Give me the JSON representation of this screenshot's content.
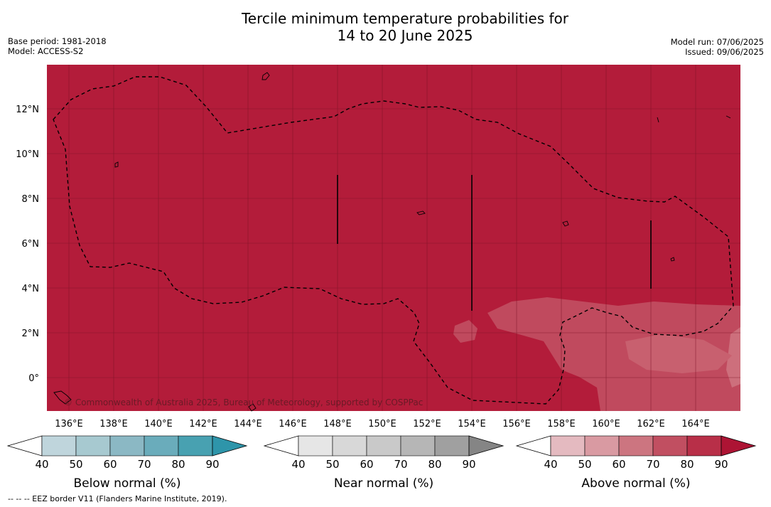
{
  "title": {
    "line1": "Tercile minimum temperature probabilities for",
    "line2": "14 to 20 June 2025"
  },
  "meta_left": {
    "base_period": "Base period: 1981-2018",
    "model": "Model: ACCESS-S2"
  },
  "meta_right": {
    "model_run": "Model run: 07/06/2025",
    "issued": "Issued: 09/06/2025"
  },
  "map": {
    "lon_range": [
      135,
      166
    ],
    "lat_range": [
      -1.5,
      14
    ],
    "x_ticks": [
      "136°E",
      "138°E",
      "140°E",
      "142°E",
      "144°E",
      "146°E",
      "148°E",
      "150°E",
      "152°E",
      "154°E",
      "156°E",
      "158°E",
      "160°E",
      "162°E",
      "164°E"
    ],
    "y_ticks": [
      "12°N",
      "10°N",
      "8°N",
      "6°N",
      "4°N",
      "2°N",
      "0°"
    ],
    "background_color": "#b31c3a",
    "copyright": "© Commonwealth of Australia 2025, Bureau of Meteorology, supported by COSPPac"
  },
  "colorbars": [
    {
      "label": "Below normal (%)",
      "ticks": [
        "40",
        "50",
        "60",
        "70",
        "80",
        "90"
      ],
      "colors": [
        "#ffffff",
        "#bfd5dc",
        "#a7c9d0",
        "#8bb8c4",
        "#6aacbb",
        "#48a1b1",
        "#2e95aa"
      ]
    },
    {
      "label": "Near normal (%)",
      "ticks": [
        "40",
        "50",
        "60",
        "70",
        "80",
        "90"
      ],
      "colors": [
        "#ffffff",
        "#e6e6e6",
        "#d8d8d8",
        "#c9c9c9",
        "#b6b6b6",
        "#a0a0a0",
        "#858585"
      ]
    },
    {
      "label": "Above normal (%)",
      "ticks": [
        "40",
        "50",
        "60",
        "70",
        "80",
        "90"
      ],
      "colors": [
        "#ffffff",
        "#e4bac0",
        "#d99aa2",
        "#cc7580",
        "#c14f61",
        "#b82f48",
        "#ad1434"
      ]
    }
  ],
  "footer": "--  --  -- EEZ border V11 (Flanders Marine Institute, 2019)."
}
